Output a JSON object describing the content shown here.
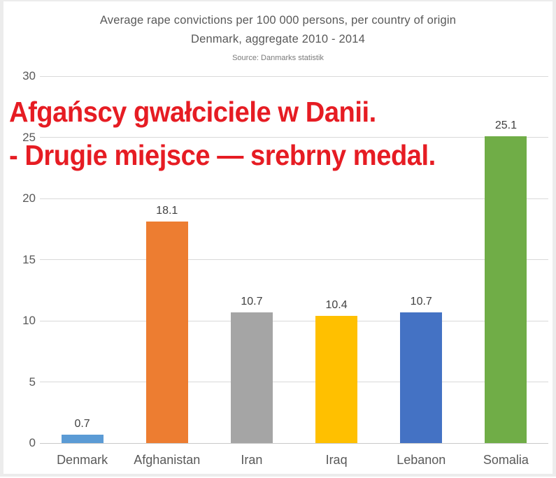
{
  "title": {
    "line1": "Average rape convictions per 100 000 persons, per country of origin",
    "line2": "Denmark, aggregate 2010 - 2014",
    "source": "Source: Danmarks statistik"
  },
  "overlay": {
    "line1": "Afgańscy gwałciciele w Danii.",
    "line2": "- Drugie miejsce — srebrny medal.",
    "color": "#e61c23"
  },
  "chart_data": {
    "type": "bar",
    "title": "Average rape convictions per 100 000 persons, per country of origin",
    "subtitle": "Denmark, aggregate 2010 - 2014",
    "source": "Source: Danmarks statistik",
    "categories": [
      "Denmark",
      "Afghanistan",
      "Iran",
      "Iraq",
      "Lebanon",
      "Somalia"
    ],
    "values": [
      0.7,
      18.1,
      10.7,
      10.4,
      10.7,
      25.1
    ],
    "value_labels": [
      "0.7",
      "18.1",
      "10.7",
      "10.4",
      "10.7",
      "25.1"
    ],
    "bar_colors": [
      "#5b9bd5",
      "#ed7d31",
      "#a5a5a5",
      "#ffc000",
      "#4472c4",
      "#70ad47"
    ],
    "xlabel": "",
    "ylabel": "",
    "ylim": [
      0,
      30
    ],
    "yticks": [
      0,
      5,
      10,
      15,
      20,
      25,
      30
    ],
    "grid": true,
    "legend": "none",
    "gridline_color": "#d9d9d9",
    "text_color": "#595959"
  }
}
